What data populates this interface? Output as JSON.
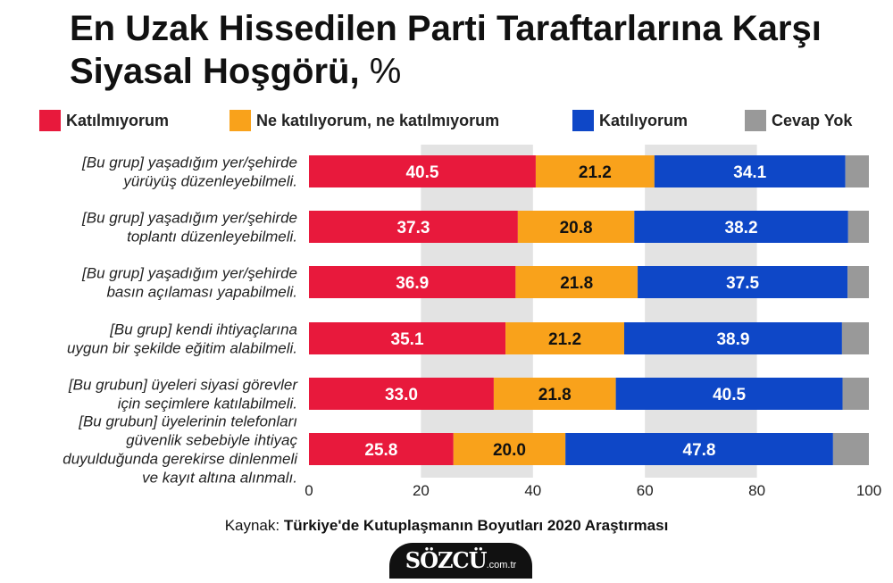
{
  "header": {
    "title": "En Uzak Hissedilen Parti Taraftarlarına Karşı Siyasal Hoşgörü,",
    "unit": "%"
  },
  "colors": {
    "disagree": "#e8193c",
    "neutral": "#f9a21b",
    "agree": "#0e47c7",
    "noanswer": "#999999",
    "band": "#e3e3e3"
  },
  "chart_data": {
    "type": "bar",
    "orientation": "horizontal",
    "stacked": true,
    "title": "En Uzak Hissedilen Parti Taraftarlarına Karşı Siyasal Hoşgörü, %",
    "categories": [
      [
        "[Bu grup] yaşadığım yer/şehirde",
        "yürüyüş düzenleyebilmeli."
      ],
      [
        "[Bu grup] yaşadığım yer/şehirde",
        "toplantı düzenleyebilmeli."
      ],
      [
        "[Bu grup] yaşadığım yer/şehirde",
        "basın açılaması yapabilmeli."
      ],
      [
        "[Bu grup] kendi ihtiyaçlarına",
        "uygun bir şekilde eğitim alabilmeli."
      ],
      [
        "[Bu grubun] üyeleri siyasi görevler",
        "için seçimlere katılabilmeli."
      ],
      [
        "[Bu grubun] üyelerinin telefonları",
        "güvenlik sebebiyle ihtiyaç",
        "duyulduğunda gerekirse dinlenmeli",
        "ve kayıt altına alınmalı."
      ]
    ],
    "series": [
      {
        "name": "Katılmıyorum",
        "color": "#e8193c",
        "values": [
          40.5,
          37.3,
          36.9,
          35.1,
          33.0,
          25.8
        ],
        "labels": [
          "40.5",
          "37.3",
          "36.9",
          "35.1",
          "33.0",
          "25.8"
        ]
      },
      {
        "name": "Ne katılıyorum, ne katılmıyorum",
        "color": "#f9a21b",
        "values": [
          21.2,
          20.8,
          21.8,
          21.2,
          21.8,
          20.0
        ],
        "labels": [
          "21.2",
          "20.8",
          "21.8",
          "21.2",
          "21.8",
          "20.0"
        ]
      },
      {
        "name": "Katılıyorum",
        "color": "#0e47c7",
        "values": [
          34.1,
          38.2,
          37.5,
          38.9,
          40.5,
          47.8
        ],
        "labels": [
          "34.1",
          "38.2",
          "37.5",
          "38.9",
          "40.5",
          "47.8"
        ]
      },
      {
        "name": "Cevap Yok",
        "color": "#999999",
        "values": [
          4.2,
          3.7,
          3.8,
          4.8,
          4.7,
          6.4
        ]
      }
    ],
    "xlim": [
      0,
      100
    ],
    "xticks": [
      "0",
      "20",
      "40",
      "60",
      "80",
      "100"
    ],
    "grid": "alternating vertical bands",
    "legend": "top"
  },
  "source": {
    "prefix": "Kaynak:",
    "name": "Türkiye'de Kutuplaşmanın Boyutları 2020 Araştırması"
  },
  "logo": {
    "name": "SÖZCÜ",
    "tld": ".com.tr"
  }
}
